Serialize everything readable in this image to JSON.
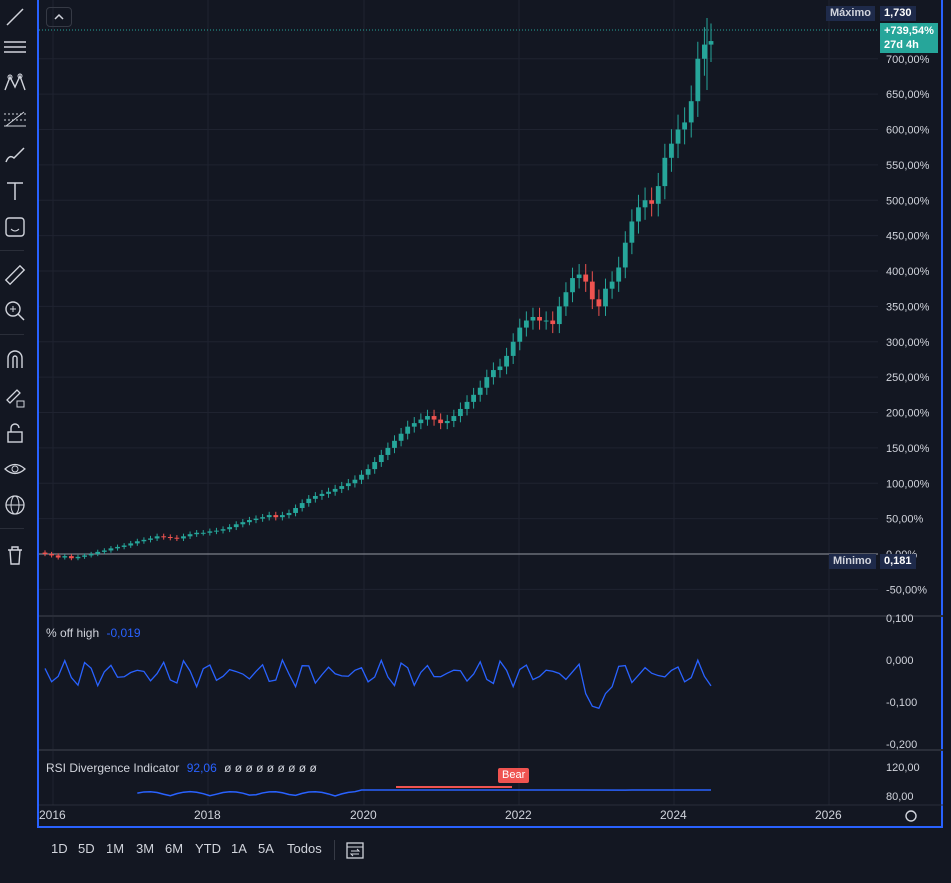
{
  "toolbar": {
    "tools": [
      "trend-line-icon",
      "horizontal-lines-icon",
      "pattern-icon",
      "fib-icon",
      "brush-icon",
      "text-icon",
      "emoji-sticker-icon",
      "ruler-icon",
      "zoom-in-icon",
      "magnet-icon",
      "lock-drawing-icon",
      "lock-icon",
      "eye-icon",
      "globe-icon",
      "trash-icon"
    ]
  },
  "main_pane": {
    "max_label": "Máximo",
    "max_value": "1,730",
    "current_change": "+739,54%",
    "countdown": "27d 4h",
    "min_label": "Mínimo",
    "min_value": "0,181",
    "price_axis": [
      "700,00%",
      "650,00%",
      "600,00%",
      "550,00%",
      "500,00%",
      "450,00%",
      "400,00%",
      "350,00%",
      "300,00%",
      "250,00%",
      "200,00%",
      "150,00%",
      "100,00%",
      "50,00%",
      "0,00%",
      "-50,00%"
    ]
  },
  "off_high_pane": {
    "title": "% off high",
    "value": "-0,019",
    "axis": [
      "0,100",
      "0,000",
      "-0,100",
      "-0,200"
    ]
  },
  "rsi_pane": {
    "title": "RSI Divergence Indicator",
    "value": "92,06",
    "placeholders": "ø ø ø ø ø ø ø ø ø",
    "axis": [
      "120,00",
      "80,00"
    ],
    "bear_label": "Bear"
  },
  "time_axis": [
    "2016",
    "2018",
    "2020",
    "2022",
    "2024",
    "2026"
  ],
  "timeframes": [
    "1D",
    "5D",
    "1M",
    "3M",
    "6M",
    "YTD",
    "1A",
    "5A",
    "Todos"
  ],
  "colors": {
    "bg": "#131722",
    "up": "#26a69a",
    "down": "#ef5350",
    "line": "#2962ff",
    "frame": "#2962ff",
    "max_tag": "#1e2a4a"
  },
  "chart_data": {
    "type": "candlestick",
    "unit": "% change",
    "ylim": [
      -75,
      760
    ],
    "x_range": [
      "2016",
      "2026"
    ],
    "series_close": [
      0,
      -2,
      -5,
      -3,
      -6,
      -4,
      -2,
      0,
      3,
      5,
      8,
      10,
      12,
      15,
      18,
      20,
      22,
      25,
      24,
      23,
      22,
      25,
      28,
      30,
      30,
      32,
      33,
      35,
      38,
      42,
      45,
      48,
      50,
      52,
      55,
      52,
      55,
      58,
      65,
      72,
      78,
      82,
      85,
      88,
      92,
      96,
      100,
      105,
      112,
      120,
      130,
      140,
      150,
      160,
      170,
      180,
      185,
      190,
      195,
      190,
      185,
      188,
      195,
      205,
      215,
      225,
      235,
      250,
      260,
      265,
      280,
      300,
      320,
      330,
      335,
      330,
      330,
      325,
      350,
      370,
      390,
      395,
      385,
      360,
      350,
      375,
      385,
      405,
      440,
      470,
      490,
      500,
      495,
      520,
      560,
      580,
      600,
      610,
      640,
      700,
      720,
      725
    ]
  }
}
